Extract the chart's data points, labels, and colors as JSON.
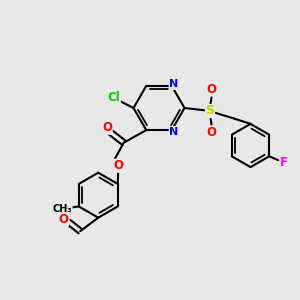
{
  "background_color": "#e8e8e8",
  "bond_color": "#000000",
  "atom_colors": {
    "Cl": "#00cc00",
    "N": "#0000ff",
    "O": "#ff0000",
    "S": "#cccc00",
    "F": "#ff00ff",
    "C": "#000000"
  }
}
